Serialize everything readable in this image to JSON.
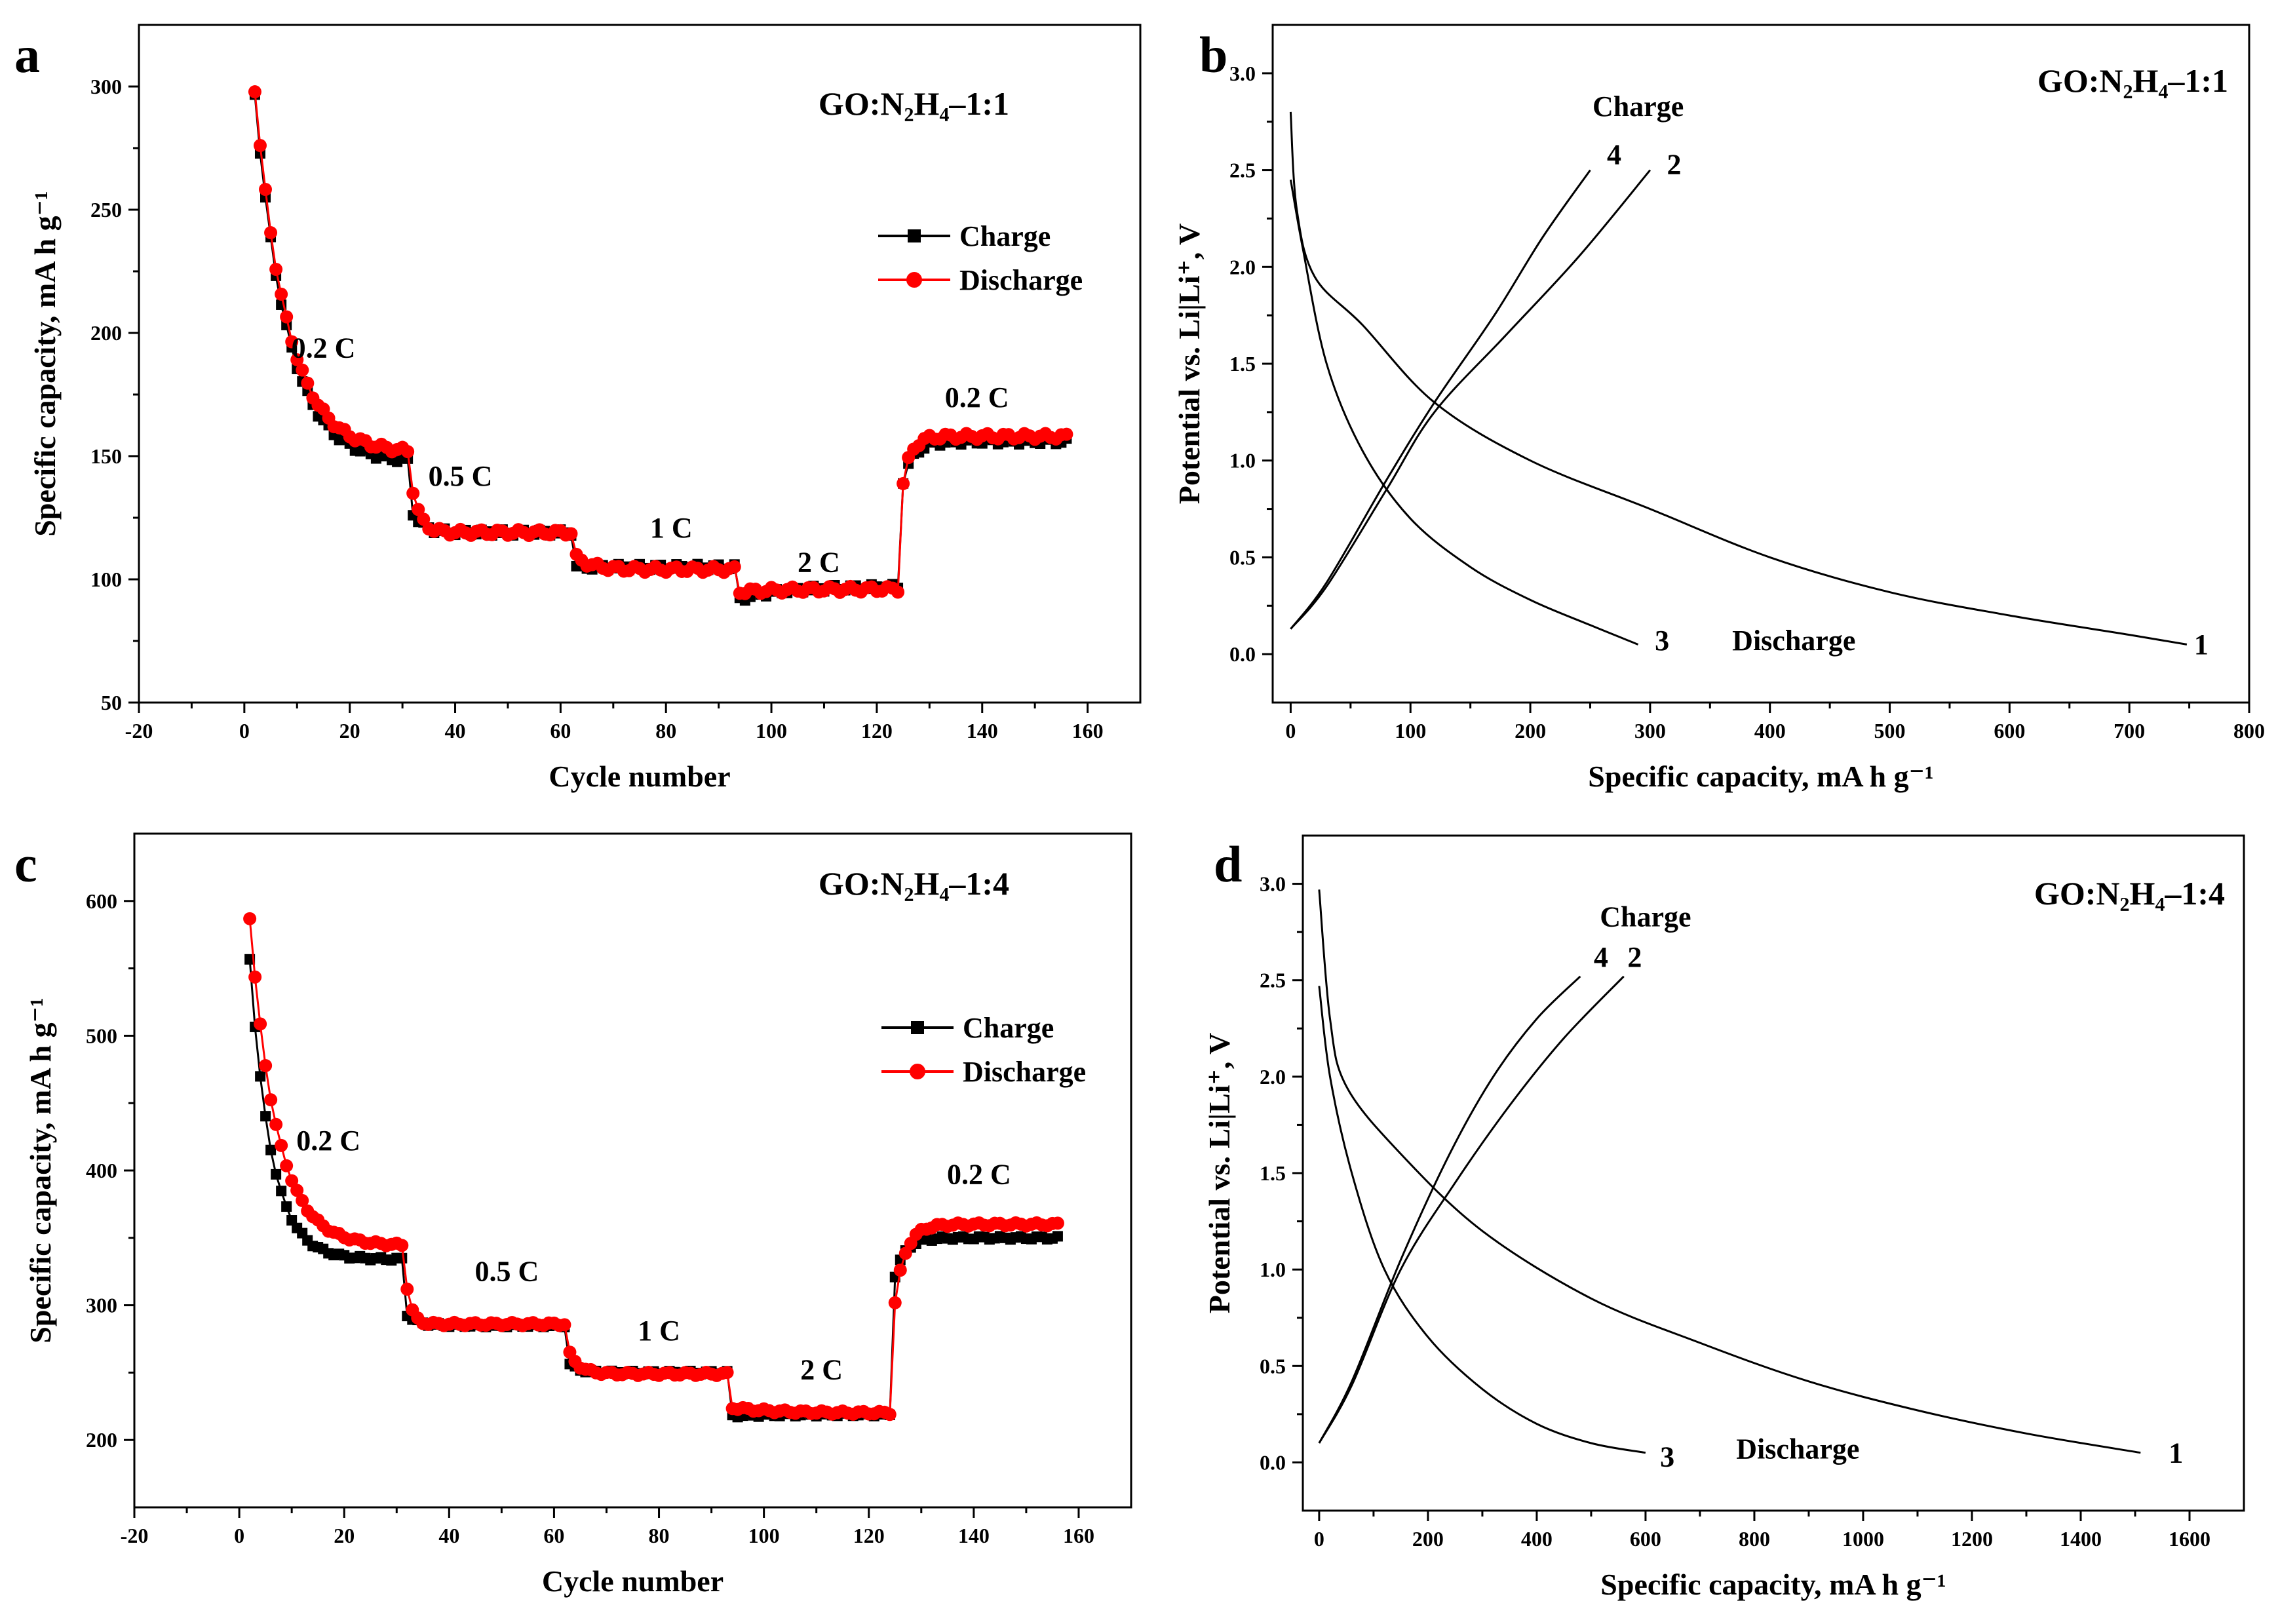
{
  "figure": {
    "panels": [
      "a",
      "b",
      "c",
      "d"
    ]
  },
  "chart_data": [
    {
      "id": "a",
      "type": "scatter",
      "panel_label": "a",
      "inset_title": "GO:N₂H₄–1:1",
      "xlabel": "Cycle number",
      "ylabel": "Specific capacity, mA h g⁻¹",
      "xlim": [
        -20,
        170
      ],
      "ylim": [
        50,
        325
      ],
      "xticks": [
        -20,
        0,
        20,
        40,
        60,
        80,
        100,
        120,
        140,
        160
      ],
      "yticks": [
        50,
        100,
        150,
        200,
        250,
        300
      ],
      "legend": [
        "Charge",
        "Discharge"
      ],
      "annotations": [
        {
          "text": "0.2 C",
          "x": 15,
          "y": 190
        },
        {
          "text": "0.5 C",
          "x": 41,
          "y": 138
        },
        {
          "text": "1 C",
          "x": 81,
          "y": 117
        },
        {
          "text": "2 C",
          "x": 109,
          "y": 103
        },
        {
          "text": "0.2 C",
          "x": 139,
          "y": 170
        }
      ],
      "series": [
        {
          "name": "Charge",
          "color": "#000000",
          "marker": "square",
          "segments": [
            {
              "from": 2,
              "to": 31,
              "start": 297,
              "end": 147,
              "tau": 6
            },
            {
              "from": 32,
              "to": 62,
              "start": 127,
              "end": 119,
              "tau": 2
            },
            {
              "from": 63,
              "to": 93,
              "start": 105,
              "end": 105,
              "tau": 2
            },
            {
              "from": 94,
              "to": 124,
              "start": 92,
              "end": 97,
              "tau": 8
            },
            {
              "from": 125,
              "to": 156,
              "start": 140,
              "end": 156,
              "tau": 2
            }
          ]
        },
        {
          "name": "Discharge",
          "color": "#ff0000",
          "marker": "circle",
          "segments": [
            {
              "from": 2,
              "to": 31,
              "start": 299,
              "end": 151,
              "tau": 6
            },
            {
              "from": 32,
              "to": 62,
              "start": 136,
              "end": 119,
              "tau": 1.5
            },
            {
              "from": 63,
              "to": 93,
              "start": 109,
              "end": 104,
              "tau": 3
            },
            {
              "from": 94,
              "to": 124,
              "start": 95,
              "end": 96,
              "tau": 8
            },
            {
              "from": 125,
              "to": 156,
              "start": 139,
              "end": 158,
              "tau": 1.5
            }
          ]
        }
      ]
    },
    {
      "id": "b",
      "type": "line",
      "panel_label": "b",
      "inset_title": "GO:N₂H₄–1:1",
      "xlabel": "Specific capacity, mA h g⁻¹",
      "ylabel": "Potential vs. Li|Li⁺, V",
      "xlim": [
        -15,
        800
      ],
      "ylim": [
        -0.25,
        3.25
      ],
      "xticks": [
        0,
        100,
        200,
        300,
        400,
        500,
        600,
        700,
        800
      ],
      "yticks": [
        0.0,
        0.5,
        1.0,
        1.5,
        2.0,
        2.5,
        3.0
      ],
      "annotations": [
        {
          "text": "Charge",
          "x": 290,
          "y": 2.78
        },
        {
          "text": "4",
          "x": 270,
          "y": 2.53
        },
        {
          "text": "2",
          "x": 320,
          "y": 2.48
        },
        {
          "text": "3",
          "x": 310,
          "y": 0.02
        },
        {
          "text": "Discharge",
          "x": 420,
          "y": 0.02
        },
        {
          "text": "1",
          "x": 760,
          "y": 0.0
        }
      ],
      "series": [
        {
          "name": "1",
          "kind": "discharge",
          "points": [
            [
              0,
              2.8
            ],
            [
              5,
              2.3
            ],
            [
              20,
              1.95
            ],
            [
              60,
              1.7
            ],
            [
              120,
              1.3
            ],
            [
              200,
              1.0
            ],
            [
              300,
              0.75
            ],
            [
              400,
              0.5
            ],
            [
              500,
              0.32
            ],
            [
              600,
              0.2
            ],
            [
              700,
              0.1
            ],
            [
              748,
              0.05
            ]
          ]
        },
        {
          "name": "3",
          "kind": "discharge",
          "points": [
            [
              0,
              2.45
            ],
            [
              10,
              2.1
            ],
            [
              30,
              1.5
            ],
            [
              60,
              1.05
            ],
            [
              100,
              0.7
            ],
            [
              150,
              0.45
            ],
            [
              200,
              0.28
            ],
            [
              250,
              0.15
            ],
            [
              290,
              0.05
            ]
          ]
        },
        {
          "name": "2",
          "kind": "charge",
          "points": [
            [
              0,
              0.13
            ],
            [
              30,
              0.35
            ],
            [
              80,
              0.85
            ],
            [
              120,
              1.25
            ],
            [
              180,
              1.65
            ],
            [
              240,
              2.05
            ],
            [
              300,
              2.5
            ]
          ]
        },
        {
          "name": "4",
          "kind": "charge",
          "points": [
            [
              0,
              0.13
            ],
            [
              30,
              0.37
            ],
            [
              80,
              0.9
            ],
            [
              120,
              1.3
            ],
            [
              170,
              1.75
            ],
            [
              210,
              2.15
            ],
            [
              250,
              2.5
            ]
          ]
        }
      ]
    },
    {
      "id": "c",
      "type": "scatter",
      "panel_label": "c",
      "inset_title": "GO:N₂H₄–1:4",
      "xlabel": "Cycle number",
      "ylabel": "Specific capacity, mA h g⁻¹",
      "xlim": [
        -20,
        170
      ],
      "ylim": [
        150,
        650
      ],
      "xticks": [
        -20,
        0,
        20,
        40,
        60,
        80,
        100,
        120,
        140,
        160
      ],
      "yticks": [
        200,
        300,
        400,
        500,
        600
      ],
      "legend": [
        "Charge",
        "Discharge"
      ],
      "annotations": [
        {
          "text": "0.2 C",
          "x": 17,
          "y": 415
        },
        {
          "text": "0.5 C",
          "x": 51,
          "y": 318
        },
        {
          "text": "1 C",
          "x": 80,
          "y": 274
        },
        {
          "text": "2 C",
          "x": 111,
          "y": 245
        },
        {
          "text": "0.2 C",
          "x": 141,
          "y": 390
        }
      ],
      "series": [
        {
          "name": "Charge",
          "color": "#000000",
          "marker": "square",
          "segments": [
            {
              "from": 2,
              "to": 31,
              "start": 557,
              "end": 334,
              "tau": 4
            },
            {
              "from": 32,
              "to": 62,
              "start": 293,
              "end": 285,
              "tau": 2
            },
            {
              "from": 63,
              "to": 93,
              "start": 256,
              "end": 250,
              "tau": 2
            },
            {
              "from": 94,
              "to": 124,
              "start": 218,
              "end": 219,
              "tau": 8
            },
            {
              "from": 125,
              "to": 156,
              "start": 322,
              "end": 350,
              "tau": 2
            }
          ]
        },
        {
          "name": "Discharge",
          "color": "#ff0000",
          "marker": "circle",
          "segments": [
            {
              "from": 2,
              "to": 31,
              "start": 588,
              "end": 344,
              "tau": 5
            },
            {
              "from": 32,
              "to": 62,
              "start": 313,
              "end": 286,
              "tau": 1
            },
            {
              "from": 63,
              "to": 93,
              "start": 264,
              "end": 249,
              "tau": 2
            },
            {
              "from": 94,
              "to": 124,
              "start": 224,
              "end": 220,
              "tau": 8
            },
            {
              "from": 125,
              "to": 156,
              "start": 302,
              "end": 360,
              "tau": 2
            }
          ]
        }
      ]
    },
    {
      "id": "d",
      "type": "line",
      "panel_label": "d",
      "inset_title": "GO:N₂H₄–1:4",
      "xlabel": "Specific capacity, mA h g⁻¹",
      "ylabel": "Potential vs. Li|Li⁺, V",
      "xlim": [
        -30,
        1700
      ],
      "ylim": [
        -0.25,
        3.25
      ],
      "xticks": [
        0,
        200,
        400,
        600,
        800,
        1000,
        1200,
        1400,
        1600
      ],
      "yticks": [
        0.0,
        0.5,
        1.0,
        1.5,
        2.0,
        2.5,
        3.0
      ],
      "annotations": [
        {
          "text": "Charge",
          "x": 600,
          "y": 2.78
        },
        {
          "text": "4",
          "x": 518,
          "y": 2.57
        },
        {
          "text": "2",
          "x": 580,
          "y": 2.57
        },
        {
          "text": "3",
          "x": 640,
          "y": -0.02
        },
        {
          "text": "Discharge",
          "x": 880,
          "y": 0.02
        },
        {
          "text": "1",
          "x": 1575,
          "y": 0.0
        }
      ],
      "series": [
        {
          "name": "1",
          "kind": "discharge",
          "points": [
            [
              0,
              2.97
            ],
            [
              20,
              2.3
            ],
            [
              50,
              1.95
            ],
            [
              150,
              1.6
            ],
            [
              300,
              1.2
            ],
            [
              500,
              0.85
            ],
            [
              700,
              0.62
            ],
            [
              900,
              0.42
            ],
            [
              1100,
              0.27
            ],
            [
              1300,
              0.15
            ],
            [
              1510,
              0.05
            ]
          ]
        },
        {
          "name": "3",
          "kind": "discharge",
          "points": [
            [
              0,
              2.47
            ],
            [
              20,
              2.0
            ],
            [
              60,
              1.5
            ],
            [
              120,
              1.0
            ],
            [
              200,
              0.65
            ],
            [
              300,
              0.38
            ],
            [
              400,
              0.2
            ],
            [
              500,
              0.1
            ],
            [
              600,
              0.05
            ]
          ]
        },
        {
          "name": "2",
          "kind": "charge",
          "points": [
            [
              0,
              0.1
            ],
            [
              60,
              0.4
            ],
            [
              150,
              1.0
            ],
            [
              250,
              1.45
            ],
            [
              350,
              1.85
            ],
            [
              450,
              2.2
            ],
            [
              560,
              2.52
            ]
          ]
        },
        {
          "name": "4",
          "kind": "charge",
          "points": [
            [
              0,
              0.1
            ],
            [
              60,
              0.42
            ],
            [
              150,
              1.05
            ],
            [
              240,
              1.6
            ],
            [
              320,
              2.0
            ],
            [
              400,
              2.3
            ],
            [
              480,
              2.52
            ]
          ]
        }
      ]
    }
  ]
}
